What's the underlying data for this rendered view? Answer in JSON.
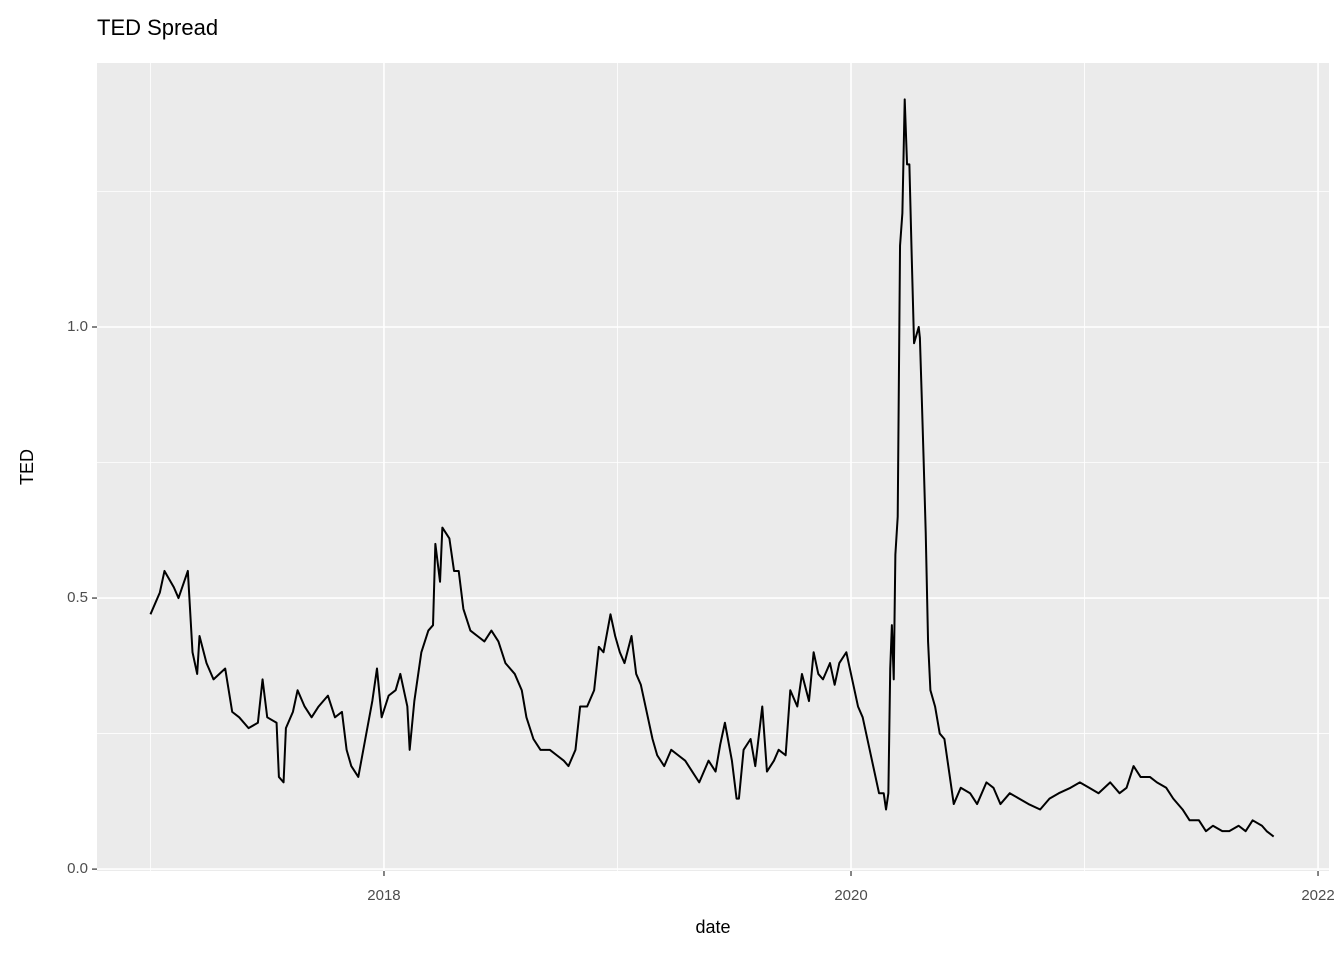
{
  "chart_data": {
    "type": "line",
    "title": "TED Spread",
    "xlabel": "date",
    "ylabel": "TED",
    "color": "#000000",
    "x": [
      2017.0,
      2017.04,
      2017.06,
      2017.1,
      2017.12,
      2017.16,
      2017.18,
      2017.2,
      2017.21,
      2017.24,
      2017.27,
      2017.32,
      2017.35,
      2017.38,
      2017.42,
      2017.46,
      2017.48,
      2017.5,
      2017.54,
      2017.55,
      2017.57,
      2017.58,
      2017.61,
      2017.63,
      2017.66,
      2017.69,
      2017.72,
      2017.76,
      2017.79,
      2017.82,
      2017.84,
      2017.86,
      2017.89,
      2017.92,
      2017.95,
      2017.97,
      2017.99,
      2018.02,
      2018.05,
      2018.07,
      2018.1,
      2018.11,
      2018.13,
      2018.16,
      2018.19,
      2018.21,
      2018.22,
      2018.24,
      2018.25,
      2018.28,
      2018.3,
      2018.32,
      2018.34,
      2018.37,
      2018.4,
      2018.43,
      2018.46,
      2018.49,
      2018.52,
      2018.56,
      2018.59,
      2018.61,
      2018.64,
      2018.67,
      2018.71,
      2018.74,
      2018.77,
      2018.79,
      2018.82,
      2018.84,
      2018.87,
      2018.9,
      2018.92,
      2018.94,
      2018.97,
      2018.99,
      2019.01,
      2019.03,
      2019.06,
      2019.08,
      2019.1,
      2019.13,
      2019.15,
      2019.17,
      2019.2,
      2019.23,
      2019.26,
      2019.29,
      2019.32,
      2019.35,
      2019.39,
      2019.42,
      2019.44,
      2019.46,
      2019.49,
      2019.51,
      2019.52,
      2019.54,
      2019.57,
      2019.59,
      2019.62,
      2019.64,
      2019.67,
      2019.69,
      2019.72,
      2019.74,
      2019.77,
      2019.79,
      2019.82,
      2019.84,
      2019.86,
      2019.88,
      2019.91,
      2019.93,
      2019.95,
      2019.98,
      2020.0,
      2020.03,
      2020.05,
      2020.08,
      2020.1,
      2020.12,
      2020.14,
      2020.15,
      2020.16,
      2020.168,
      2020.175,
      2020.183,
      2020.19,
      2020.2,
      2020.21,
      2020.22,
      2020.23,
      2020.24,
      2020.25,
      2020.26,
      2020.27,
      2020.29,
      2020.295,
      2020.303,
      2020.31,
      2020.32,
      2020.33,
      2020.34,
      2020.36,
      2020.38,
      2020.4,
      2020.42,
      2020.44,
      2020.47,
      2020.51,
      2020.54,
      2020.58,
      2020.61,
      2020.64,
      2020.68,
      2020.72,
      2020.76,
      2020.81,
      2020.85,
      2020.89,
      2020.94,
      2020.98,
      2021.02,
      2021.06,
      2021.11,
      2021.15,
      2021.18,
      2021.21,
      2021.24,
      2021.28,
      2021.31,
      2021.35,
      2021.38,
      2021.42,
      2021.45,
      2021.49,
      2021.52,
      2021.55,
      2021.59,
      2021.62,
      2021.66,
      2021.69,
      2021.72,
      2021.76,
      2021.78,
      2021.81
    ],
    "values": [
      0.47,
      0.51,
      0.55,
      0.52,
      0.5,
      0.55,
      0.4,
      0.36,
      0.43,
      0.38,
      0.35,
      0.37,
      0.29,
      0.28,
      0.26,
      0.27,
      0.35,
      0.28,
      0.27,
      0.17,
      0.16,
      0.26,
      0.29,
      0.33,
      0.3,
      0.28,
      0.3,
      0.32,
      0.28,
      0.29,
      0.22,
      0.19,
      0.17,
      0.24,
      0.31,
      0.37,
      0.28,
      0.32,
      0.33,
      0.36,
      0.3,
      0.22,
      0.31,
      0.4,
      0.44,
      0.45,
      0.6,
      0.53,
      0.63,
      0.61,
      0.55,
      0.55,
      0.48,
      0.44,
      0.43,
      0.42,
      0.44,
      0.42,
      0.38,
      0.36,
      0.33,
      0.28,
      0.24,
      0.22,
      0.22,
      0.21,
      0.2,
      0.19,
      0.22,
      0.3,
      0.3,
      0.33,
      0.41,
      0.4,
      0.47,
      0.43,
      0.4,
      0.38,
      0.43,
      0.36,
      0.34,
      0.28,
      0.24,
      0.21,
      0.19,
      0.22,
      0.21,
      0.2,
      0.18,
      0.16,
      0.2,
      0.18,
      0.23,
      0.27,
      0.2,
      0.13,
      0.13,
      0.22,
      0.24,
      0.19,
      0.3,
      0.18,
      0.2,
      0.22,
      0.21,
      0.33,
      0.3,
      0.36,
      0.31,
      0.4,
      0.36,
      0.35,
      0.38,
      0.34,
      0.38,
      0.4,
      0.36,
      0.3,
      0.28,
      0.22,
      0.18,
      0.14,
      0.14,
      0.11,
      0.14,
      0.37,
      0.45,
      0.35,
      0.58,
      0.65,
      1.15,
      1.21,
      1.42,
      1.3,
      1.3,
      1.13,
      0.97,
      1.0,
      0.98,
      0.87,
      0.77,
      0.62,
      0.42,
      0.33,
      0.3,
      0.25,
      0.24,
      0.18,
      0.12,
      0.15,
      0.14,
      0.12,
      0.16,
      0.15,
      0.12,
      0.14,
      0.13,
      0.12,
      0.11,
      0.13,
      0.14,
      0.15,
      0.16,
      0.15,
      0.14,
      0.16,
      0.14,
      0.15,
      0.19,
      0.17,
      0.17,
      0.16,
      0.15,
      0.13,
      0.11,
      0.09,
      0.09,
      0.07,
      0.08,
      0.07,
      0.07,
      0.08,
      0.07,
      0.09,
      0.08,
      0.07,
      0.06
    ],
    "xlim": [
      2016.771,
      2022.047
    ],
    "xticks": [
      2018,
      2020,
      2022
    ],
    "xminor": [
      2017,
      2019,
      2021
    ],
    "ylim": [
      -0.0035,
      1.487
    ],
    "yticks": [
      {
        "value": 0,
        "label": "0.0"
      },
      {
        "value": 0.5,
        "label": "0.5"
      },
      {
        "value": 1,
        "label": "1.0"
      }
    ],
    "yminor": [
      0.25,
      0.75,
      1.25
    ],
    "grid": true
  }
}
